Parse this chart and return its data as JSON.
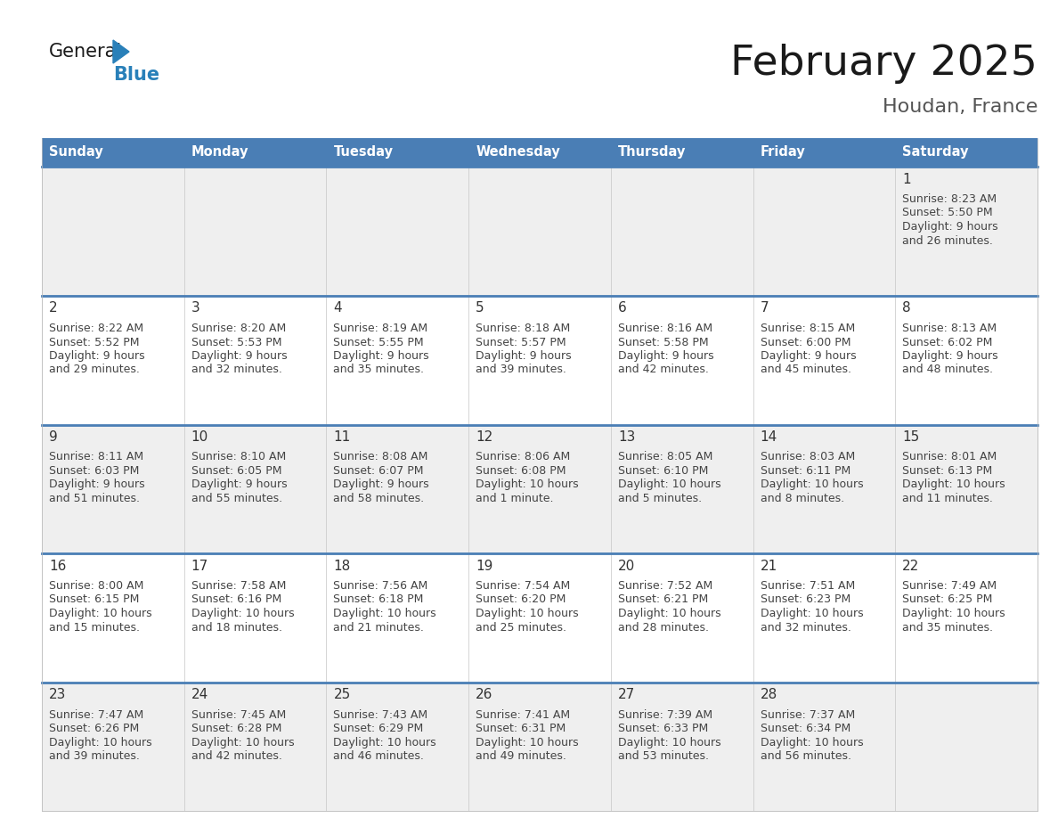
{
  "title": "February 2025",
  "subtitle": "Houdan, France",
  "days_of_week": [
    "Sunday",
    "Monday",
    "Tuesday",
    "Wednesday",
    "Thursday",
    "Friday",
    "Saturday"
  ],
  "header_bg": "#4A7EB5",
  "header_text_color": "#FFFFFF",
  "cell_bg_row0": "#EFEFEF",
  "cell_bg_odd": "#EFEFEF",
  "cell_bg_even": "#FFFFFF",
  "border_color": "#4A7EB5",
  "text_color": "#444444",
  "day_number_color": "#333333",
  "background_color": "#FFFFFF",
  "title_color": "#1a1a1a",
  "subtitle_color": "#555555",
  "logo_general_color": "#1a1a1a",
  "logo_blue_color": "#2980B9",
  "calendar_data": [
    {
      "day": 1,
      "col": 6,
      "row": 0,
      "sunrise": "8:23 AM",
      "sunset": "5:50 PM",
      "daylight": "9 hours and 26 minutes."
    },
    {
      "day": 2,
      "col": 0,
      "row": 1,
      "sunrise": "8:22 AM",
      "sunset": "5:52 PM",
      "daylight": "9 hours and 29 minutes."
    },
    {
      "day": 3,
      "col": 1,
      "row": 1,
      "sunrise": "8:20 AM",
      "sunset": "5:53 PM",
      "daylight": "9 hours and 32 minutes."
    },
    {
      "day": 4,
      "col": 2,
      "row": 1,
      "sunrise": "8:19 AM",
      "sunset": "5:55 PM",
      "daylight": "9 hours and 35 minutes."
    },
    {
      "day": 5,
      "col": 3,
      "row": 1,
      "sunrise": "8:18 AM",
      "sunset": "5:57 PM",
      "daylight": "9 hours and 39 minutes."
    },
    {
      "day": 6,
      "col": 4,
      "row": 1,
      "sunrise": "8:16 AM",
      "sunset": "5:58 PM",
      "daylight": "9 hours and 42 minutes."
    },
    {
      "day": 7,
      "col": 5,
      "row": 1,
      "sunrise": "8:15 AM",
      "sunset": "6:00 PM",
      "daylight": "9 hours and 45 minutes."
    },
    {
      "day": 8,
      "col": 6,
      "row": 1,
      "sunrise": "8:13 AM",
      "sunset": "6:02 PM",
      "daylight": "9 hours and 48 minutes."
    },
    {
      "day": 9,
      "col": 0,
      "row": 2,
      "sunrise": "8:11 AM",
      "sunset": "6:03 PM",
      "daylight": "9 hours and 51 minutes."
    },
    {
      "day": 10,
      "col": 1,
      "row": 2,
      "sunrise": "8:10 AM",
      "sunset": "6:05 PM",
      "daylight": "9 hours and 55 minutes."
    },
    {
      "day": 11,
      "col": 2,
      "row": 2,
      "sunrise": "8:08 AM",
      "sunset": "6:07 PM",
      "daylight": "9 hours and 58 minutes."
    },
    {
      "day": 12,
      "col": 3,
      "row": 2,
      "sunrise": "8:06 AM",
      "sunset": "6:08 PM",
      "daylight": "10 hours and 1 minute."
    },
    {
      "day": 13,
      "col": 4,
      "row": 2,
      "sunrise": "8:05 AM",
      "sunset": "6:10 PM",
      "daylight": "10 hours and 5 minutes."
    },
    {
      "day": 14,
      "col": 5,
      "row": 2,
      "sunrise": "8:03 AM",
      "sunset": "6:11 PM",
      "daylight": "10 hours and 8 minutes."
    },
    {
      "day": 15,
      "col": 6,
      "row": 2,
      "sunrise": "8:01 AM",
      "sunset": "6:13 PM",
      "daylight": "10 hours and 11 minutes."
    },
    {
      "day": 16,
      "col": 0,
      "row": 3,
      "sunrise": "8:00 AM",
      "sunset": "6:15 PM",
      "daylight": "10 hours and 15 minutes."
    },
    {
      "day": 17,
      "col": 1,
      "row": 3,
      "sunrise": "7:58 AM",
      "sunset": "6:16 PM",
      "daylight": "10 hours and 18 minutes."
    },
    {
      "day": 18,
      "col": 2,
      "row": 3,
      "sunrise": "7:56 AM",
      "sunset": "6:18 PM",
      "daylight": "10 hours and 21 minutes."
    },
    {
      "day": 19,
      "col": 3,
      "row": 3,
      "sunrise": "7:54 AM",
      "sunset": "6:20 PM",
      "daylight": "10 hours and 25 minutes."
    },
    {
      "day": 20,
      "col": 4,
      "row": 3,
      "sunrise": "7:52 AM",
      "sunset": "6:21 PM",
      "daylight": "10 hours and 28 minutes."
    },
    {
      "day": 21,
      "col": 5,
      "row": 3,
      "sunrise": "7:51 AM",
      "sunset": "6:23 PM",
      "daylight": "10 hours and 32 minutes."
    },
    {
      "day": 22,
      "col": 6,
      "row": 3,
      "sunrise": "7:49 AM",
      "sunset": "6:25 PM",
      "daylight": "10 hours and 35 minutes."
    },
    {
      "day": 23,
      "col": 0,
      "row": 4,
      "sunrise": "7:47 AM",
      "sunset": "6:26 PM",
      "daylight": "10 hours and 39 minutes."
    },
    {
      "day": 24,
      "col": 1,
      "row": 4,
      "sunrise": "7:45 AM",
      "sunset": "6:28 PM",
      "daylight": "10 hours and 42 minutes."
    },
    {
      "day": 25,
      "col": 2,
      "row": 4,
      "sunrise": "7:43 AM",
      "sunset": "6:29 PM",
      "daylight": "10 hours and 46 minutes."
    },
    {
      "day": 26,
      "col": 3,
      "row": 4,
      "sunrise": "7:41 AM",
      "sunset": "6:31 PM",
      "daylight": "10 hours and 49 minutes."
    },
    {
      "day": 27,
      "col": 4,
      "row": 4,
      "sunrise": "7:39 AM",
      "sunset": "6:33 PM",
      "daylight": "10 hours and 53 minutes."
    },
    {
      "day": 28,
      "col": 5,
      "row": 4,
      "sunrise": "7:37 AM",
      "sunset": "6:34 PM",
      "daylight": "10 hours and 56 minutes."
    }
  ]
}
